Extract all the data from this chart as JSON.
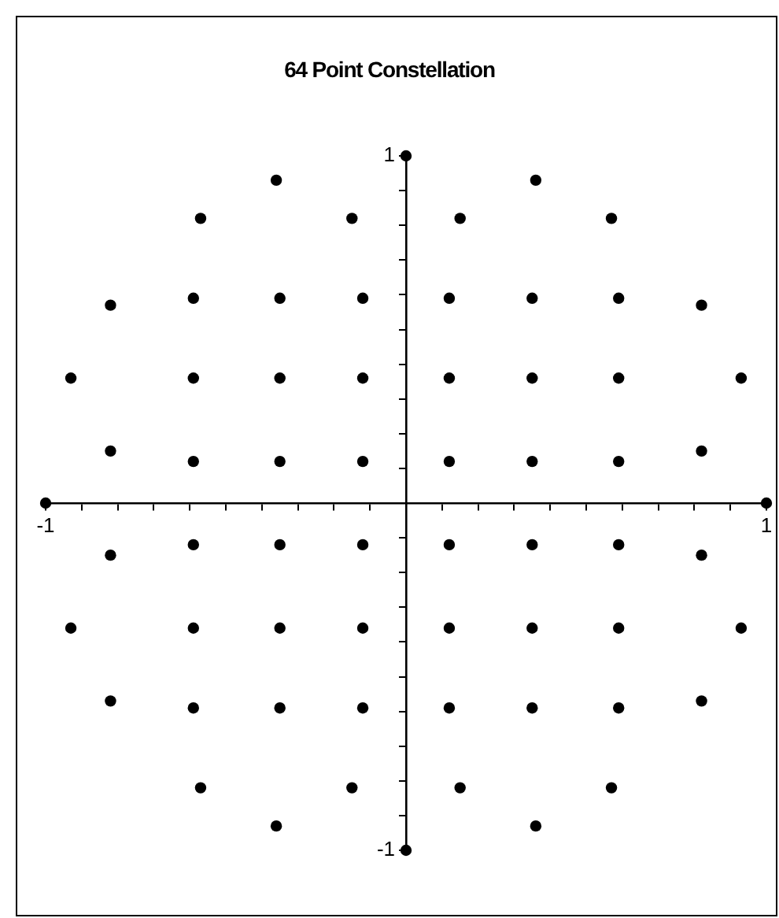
{
  "chart_data": {
    "type": "scatter",
    "title": "64 Point Constellation",
    "marker": "circle",
    "grid": false,
    "legend": false,
    "color": "#000000",
    "xlim": [
      -1,
      1
    ],
    "ylim": [
      -1,
      1
    ],
    "xticks": [
      -1,
      {
        "value": -0.9,
        "label": null
      },
      {
        "value": -0.8,
        "label": null
      },
      {
        "value": -0.7,
        "label": null
      },
      {
        "value": -0.6,
        "label": null
      },
      {
        "value": -0.5,
        "label": null
      },
      {
        "value": -0.4,
        "label": null
      },
      {
        "value": -0.3,
        "label": null
      },
      {
        "value": -0.2,
        "label": null
      },
      {
        "value": -0.1,
        "label": null
      },
      {
        "value": 0,
        "label": null
      },
      {
        "value": 0.1,
        "label": null
      },
      {
        "value": 0.2,
        "label": null
      },
      {
        "value": 0.3,
        "label": null
      },
      {
        "value": 0.4,
        "label": null
      },
      {
        "value": 0.5,
        "label": null
      },
      {
        "value": 0.6,
        "label": null
      },
      {
        "value": 0.7,
        "label": null
      },
      {
        "value": 0.8,
        "label": null
      },
      {
        "value": 0.9,
        "label": null
      },
      1
    ],
    "yticks": [
      -1,
      {
        "value": -0.9,
        "label": null
      },
      {
        "value": -0.8,
        "label": null
      },
      {
        "value": -0.7,
        "label": null
      },
      {
        "value": -0.6,
        "label": null
      },
      {
        "value": -0.5,
        "label": null
      },
      {
        "value": -0.4,
        "label": null
      },
      {
        "value": -0.3,
        "label": null
      },
      {
        "value": -0.2,
        "label": null
      },
      {
        "value": -0.1,
        "label": null
      },
      {
        "value": 0,
        "label": null
      },
      {
        "value": 0.1,
        "label": null
      },
      {
        "value": 0.2,
        "label": null
      },
      {
        "value": 0.3,
        "label": null
      },
      {
        "value": 0.4,
        "label": null
      },
      {
        "value": 0.5,
        "label": null
      },
      {
        "value": 0.6,
        "label": null
      },
      {
        "value": 0.7,
        "label": null
      },
      {
        "value": 0.8,
        "label": null
      },
      {
        "value": 0.9,
        "label": null
      },
      1
    ],
    "x": [
      0,
      -0.36,
      0.36,
      -0.57,
      -0.15,
      0.15,
      0.57,
      -0.59,
      -0.35,
      -0.12,
      0.12,
      0.35,
      0.59,
      -0.82,
      0.82,
      -0.93,
      -0.59,
      -0.35,
      -0.12,
      0.12,
      0.35,
      0.59,
      0.93,
      -0.82,
      0.82,
      -0.59,
      -0.35,
      -0.12,
      0.12,
      0.35,
      0.59,
      -1,
      1,
      -0.59,
      -0.35,
      -0.12,
      0.12,
      0.35,
      0.59,
      -0.82,
      0.82,
      -0.93,
      -0.59,
      -0.35,
      -0.12,
      0.12,
      0.35,
      0.59,
      0.93,
      -0.82,
      0.82,
      -0.59,
      -0.35,
      -0.12,
      0.12,
      0.35,
      0.59,
      -0.57,
      -0.15,
      0.15,
      0.57,
      -0.36,
      0.36,
      0
    ],
    "values": [
      1,
      0.93,
      0.93,
      0.82,
      0.82,
      0.82,
      0.82,
      0.59,
      0.59,
      0.59,
      0.59,
      0.59,
      0.59,
      0.57,
      0.57,
      0.36,
      0.36,
      0.36,
      0.36,
      0.36,
      0.36,
      0.36,
      0.36,
      0.15,
      0.15,
      0.12,
      0.12,
      0.12,
      0.12,
      0.12,
      0.12,
      0,
      0,
      -0.12,
      -0.12,
      -0.12,
      -0.12,
      -0.12,
      -0.12,
      -0.15,
      -0.15,
      -0.36,
      -0.36,
      -0.36,
      -0.36,
      -0.36,
      -0.36,
      -0.36,
      -0.36,
      -0.57,
      -0.57,
      -0.59,
      -0.59,
      -0.59,
      -0.59,
      -0.59,
      -0.59,
      -0.82,
      -0.82,
      -0.82,
      -0.82,
      -0.93,
      -0.93,
      -1
    ]
  }
}
